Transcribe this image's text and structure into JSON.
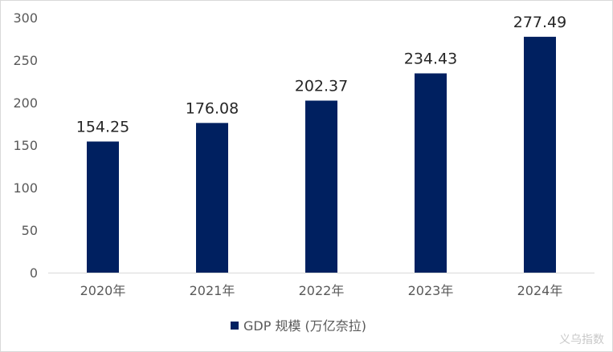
{
  "chart_data": {
    "type": "bar",
    "categories": [
      "2020年",
      "2021年",
      "2022年",
      "2023年",
      "2024年"
    ],
    "series": [
      {
        "name": "GDP 规模 (万亿奈拉)",
        "values": [
          154.25,
          176.08,
          202.37,
          234.43,
          277.49
        ]
      }
    ],
    "data_labels": [
      "154.25",
      "176.08",
      "202.37",
      "234.43",
      "277.49"
    ],
    "y_ticks": [
      0,
      50,
      100,
      150,
      200,
      250,
      300
    ],
    "ylim": [
      0,
      300
    ],
    "grid": false,
    "legend_position": "bottom",
    "bar_color": "#002060"
  },
  "watermark": "义乌指数"
}
